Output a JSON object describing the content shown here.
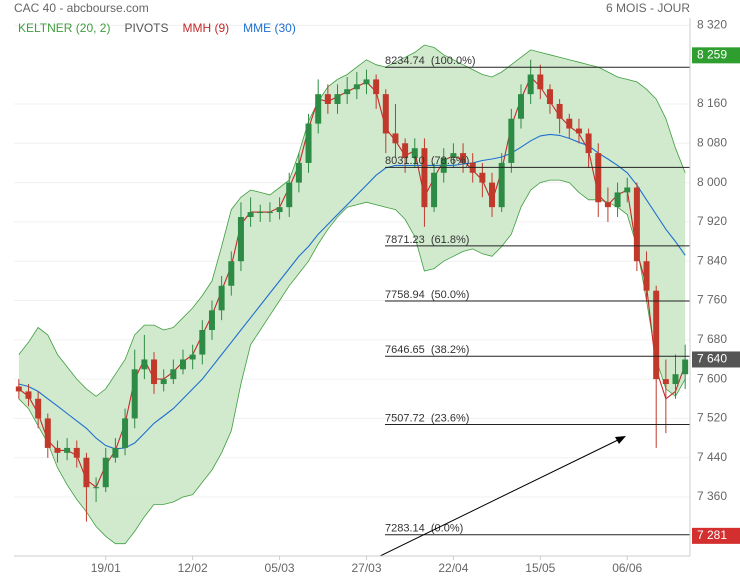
{
  "chart_data": {
    "type": "candlestick",
    "title": "CAC 40 - abcbourse.com",
    "subtitle": "6 MOIS - JOUR",
    "categories": [
      null,
      null,
      null,
      null,
      null,
      null,
      null,
      null,
      null,
      "19/01",
      null,
      null,
      null,
      null,
      null,
      null,
      null,
      null,
      "12/02",
      null,
      null,
      null,
      null,
      null,
      null,
      null,
      null,
      "05/03",
      null,
      null,
      null,
      null,
      null,
      null,
      null,
      null,
      "27/03",
      null,
      null,
      null,
      null,
      null,
      null,
      null,
      null,
      "22/04",
      null,
      null,
      null,
      null,
      null,
      null,
      null,
      null,
      "15/05",
      null,
      null,
      null,
      null,
      null,
      null,
      null,
      null,
      "06/06",
      null,
      null,
      null,
      null,
      null,
      null
    ],
    "open": [
      7585,
      7575,
      7560,
      7520,
      7460,
      7450,
      7460,
      7440,
      7380,
      7380,
      7440,
      7460,
      7520,
      7620,
      7640,
      7590,
      7600,
      7620,
      7640,
      7650,
      7700,
      7740,
      7790,
      7840,
      7930,
      7940,
      7940,
      7940,
      7950,
      8000,
      8040,
      8120,
      8180,
      8160,
      8180,
      8190,
      8200,
      8210,
      8180,
      8100,
      8080,
      8050,
      8070,
      7950,
      8020,
      8050,
      8060,
      8040,
      8020,
      8000,
      7950,
      8040,
      8130,
      8180,
      8220,
      8190,
      8160,
      8130,
      8110,
      8100,
      8060,
      7960,
      7950,
      7980,
      7990,
      7840,
      7780,
      7600,
      7590,
      7610
    ],
    "high": [
      7600,
      7590,
      7575,
      7530,
      7475,
      7480,
      7475,
      7450,
      7400,
      7460,
      7480,
      7540,
      7660,
      7690,
      7655,
      7620,
      7640,
      7660,
      7670,
      7720,
      7760,
      7810,
      7860,
      7960,
      7970,
      7955,
      7960,
      7970,
      8020,
      8060,
      8140,
      8210,
      8200,
      8200,
      8215,
      8225,
      8230,
      8220,
      8190,
      8160,
      8090,
      8090,
      8090,
      8040,
      8070,
      8080,
      8080,
      8060,
      8040,
      8020,
      8060,
      8150,
      8200,
      8250,
      8240,
      8200,
      8170,
      8140,
      8130,
      8110,
      8080,
      7990,
      8000,
      8010,
      8000,
      7860,
      7790,
      7640,
      7650,
      7670
    ],
    "low": [
      7560,
      7545,
      7500,
      7440,
      7430,
      7435,
      7420,
      7310,
      7350,
      7370,
      7430,
      7445,
      7500,
      7600,
      7570,
      7575,
      7590,
      7610,
      7620,
      7630,
      7680,
      7720,
      7770,
      7820,
      7910,
      7920,
      7920,
      7925,
      7930,
      7980,
      8020,
      8100,
      8140,
      8140,
      8160,
      8170,
      8180,
      8150,
      8060,
      8050,
      8020,
      8030,
      7910,
      7940,
      8000,
      8030,
      8020,
      8000,
      7970,
      7930,
      7940,
      8020,
      8110,
      8160,
      8170,
      8140,
      8100,
      8090,
      8080,
      8030,
      7930,
      7920,
      7930,
      7960,
      7820,
      7760,
      7460,
      7490,
      7560,
      7580
    ],
    "close": [
      7575,
      7560,
      7520,
      7460,
      7450,
      7460,
      7440,
      7380,
      7380,
      7440,
      7460,
      7520,
      7620,
      7640,
      7590,
      7600,
      7620,
      7640,
      7650,
      7700,
      7740,
      7790,
      7840,
      7930,
      7940,
      7940,
      7940,
      7950,
      8000,
      8040,
      8120,
      8180,
      8160,
      8180,
      8190,
      8200,
      8210,
      8180,
      8100,
      8080,
      8050,
      8070,
      7950,
      8020,
      8050,
      8060,
      8040,
      8020,
      8000,
      7950,
      8040,
      8130,
      8180,
      8220,
      8190,
      8160,
      8130,
      8110,
      8100,
      8060,
      7960,
      7950,
      7980,
      7990,
      7840,
      7780,
      7600,
      7590,
      7610,
      7640
    ],
    "up_color": "#2e8b45",
    "down_color": "#c0392b",
    "ylim": [
      7240,
      8335
    ],
    "yticks": [
      {
        "value": 8320,
        "label": "8 320"
      },
      {
        "value": 8160,
        "label": "8 160"
      },
      {
        "value": 8080,
        "label": "8 080"
      },
      {
        "value": 8000,
        "label": "8 000"
      },
      {
        "value": 7920,
        "label": "7 920"
      },
      {
        "value": 7840,
        "label": "7 840"
      },
      {
        "value": 7760,
        "label": "7 760"
      },
      {
        "value": 7680,
        "label": "7 680"
      },
      {
        "value": 7600,
        "label": "7 600"
      },
      {
        "value": 7520,
        "label": "7 520"
      },
      {
        "value": 7440,
        "label": "7 440"
      },
      {
        "value": 7360,
        "label": "7 360"
      }
    ],
    "series": [
      {
        "name": "KELTNER (20, 2)",
        "color": "#3f9e3f",
        "upper": [
          7650,
          7675,
          7705,
          7690,
          7650,
          7625,
          7600,
          7580,
          7565,
          7580,
          7610,
          7640,
          7690,
          7710,
          7710,
          7700,
          7705,
          7725,
          7745,
          7770,
          7800,
          7870,
          7945,
          7970,
          7985,
          7980,
          7975,
          7990,
          8005,
          8060,
          8125,
          8165,
          8195,
          8210,
          8220,
          8235,
          8250,
          8240,
          8235,
          8245,
          8255,
          8265,
          8280,
          8275,
          8260,
          8250,
          8240,
          8230,
          8220,
          8215,
          8225,
          8240,
          8255,
          8270,
          8265,
          8260,
          8255,
          8250,
          8245,
          8240,
          8235,
          8225,
          8215,
          8210,
          8205,
          8190,
          8170,
          8130,
          8070,
          8020
        ],
        "lower": [
          7560,
          7540,
          7505,
          7470,
          7420,
          7385,
          7355,
          7330,
          7300,
          7280,
          7265,
          7265,
          7290,
          7320,
          7345,
          7345,
          7350,
          7360,
          7365,
          7390,
          7415,
          7450,
          7495,
          7590,
          7670,
          7700,
          7730,
          7760,
          7790,
          7815,
          7840,
          7875,
          7905,
          7930,
          7950,
          7955,
          7960,
          7955,
          7950,
          7945,
          7925,
          7890,
          7820,
          7825,
          7840,
          7850,
          7860,
          7865,
          7855,
          7850,
          7870,
          7895,
          7950,
          7985,
          8000,
          8005,
          8005,
          8000,
          7980,
          7965,
          7965,
          7960,
          7950,
          7935,
          7870,
          7760,
          7640,
          7580,
          7565,
          7600
        ]
      },
      {
        "name": "PIVOTS",
        "color": "#555555"
      },
      {
        "name": "MMH (9)",
        "color": "#c62828",
        "values": [
          7580,
          7565,
          7530,
          7475,
          7455,
          7455,
          7445,
          7395,
          7380,
          7425,
          7455,
          7510,
          7600,
          7640,
          7600,
          7600,
          7615,
          7635,
          7650,
          7690,
          7730,
          7780,
          7830,
          7915,
          7940,
          7940,
          7940,
          7950,
          7990,
          8035,
          8110,
          8170,
          8165,
          8175,
          8185,
          8195,
          8205,
          8185,
          8110,
          8085,
          8055,
          8065,
          7970,
          8010,
          8045,
          8055,
          8045,
          8025,
          8005,
          7960,
          8025,
          8115,
          8170,
          8215,
          8195,
          8165,
          8135,
          8115,
          8100,
          8065,
          7975,
          7955,
          7975,
          7985,
          7860,
          7790,
          7620,
          7560,
          7575,
          7630
        ]
      },
      {
        "name": "MME (30)",
        "color": "#1f6fd0",
        "values": [
          7590,
          7585,
          7575,
          7560,
          7545,
          7530,
          7515,
          7500,
          7480,
          7465,
          7458,
          7460,
          7470,
          7490,
          7510,
          7525,
          7540,
          7560,
          7580,
          7600,
          7625,
          7650,
          7675,
          7700,
          7725,
          7750,
          7775,
          7800,
          7825,
          7850,
          7870,
          7895,
          7915,
          7935,
          7955,
          7975,
          7995,
          8015,
          8030,
          8035,
          8035,
          8035,
          8035,
          8035,
          8035,
          8035,
          8038,
          8040,
          8045,
          8048,
          8052,
          8060,
          8072,
          8085,
          8095,
          8098,
          8096,
          8090,
          8082,
          8075,
          8060,
          8048,
          8035,
          8020,
          7995,
          7965,
          7935,
          7905,
          7880,
          7852
        ]
      }
    ],
    "fib_levels": [
      {
        "value": 8234.74,
        "label": "8234.74  (100.0%)"
      },
      {
        "value": 8031.1,
        "label": "8031.10  (78.6%)"
      },
      {
        "value": 7871.23,
        "label": "7871.23  (61.8%)"
      },
      {
        "value": 7758.94,
        "label": "7758.94  (50.0%)"
      },
      {
        "value": 7646.65,
        "label": "7646.65  (38.2%)"
      },
      {
        "value": 7507.72,
        "label": "7507.72  (23.6%)"
      },
      {
        "value": 7283.14,
        "label": "7283.14  (0.0%)"
      }
    ],
    "price_badges": [
      {
        "value": 8259,
        "label": "8 259",
        "color": "#2e9e2e"
      },
      {
        "value": 7640,
        "label": "7 640",
        "color": "#555555"
      },
      {
        "value": 7281,
        "label": "7 281",
        "color": "#d32f2f"
      }
    ]
  }
}
